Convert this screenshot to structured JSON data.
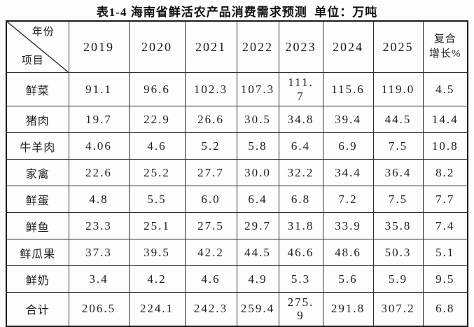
{
  "title": "表1-4 海南省鲜活农产品消费需求预测  单位：万吨",
  "unit_note": "万吨",
  "table": {
    "corner": {
      "top_label": "年份",
      "bottom_label": "项目"
    },
    "year_headers": [
      "2019",
      "2020",
      "2021",
      "2022",
      "2023",
      "2024",
      "2025"
    ],
    "growth_header": "复合\n增长%",
    "rows": [
      {
        "label": "鲜菜",
        "values": [
          "91.1",
          "96.6",
          "102.3",
          "107.3",
          "111.\n7",
          "115.6",
          "119.0",
          "4.5"
        ]
      },
      {
        "label": "猪肉",
        "values": [
          "19.7",
          "22.9",
          "26.6",
          "30.5",
          "34.8",
          "39.4",
          "44.5",
          "14.4"
        ]
      },
      {
        "label": "牛羊肉",
        "values": [
          "4.06",
          "4.6",
          "5.2",
          "5.8",
          "6.4",
          "6.9",
          "7.5",
          "10.8"
        ]
      },
      {
        "label": "家禽",
        "values": [
          "22.6",
          "25.2",
          "27.7",
          "30.0",
          "32.2",
          "34.4",
          "36.4",
          "8.2"
        ]
      },
      {
        "label": "鲜蛋",
        "values": [
          "4.8",
          "5.5",
          "6.0",
          "6.4",
          "6.8",
          "7.2",
          "7.5",
          "7.7"
        ]
      },
      {
        "label": "鲜鱼",
        "values": [
          "23.3",
          "25.1",
          "27.5",
          "29.7",
          "31.8",
          "33.9",
          "35.8",
          "7.4"
        ]
      },
      {
        "label": "鲜瓜果",
        "values": [
          "37.3",
          "39.5",
          "42.2",
          "44.5",
          "46.6",
          "48.6",
          "50.3",
          "5.1"
        ]
      },
      {
        "label": "鲜奶",
        "values": [
          "3.4",
          "4.2",
          "4.6",
          "4.9",
          "5.3",
          "5.6",
          "5.9",
          "9.5"
        ]
      },
      {
        "label": "合计",
        "values": [
          "206.5",
          "224.1",
          "242.3",
          "259.4",
          "275.\n9",
          "291.8",
          "307.2",
          "6.8"
        ]
      }
    ]
  },
  "colors": {
    "page_background": "#fdfdfd",
    "border": "#2e2e2e",
    "text": "#1e1e1e"
  }
}
